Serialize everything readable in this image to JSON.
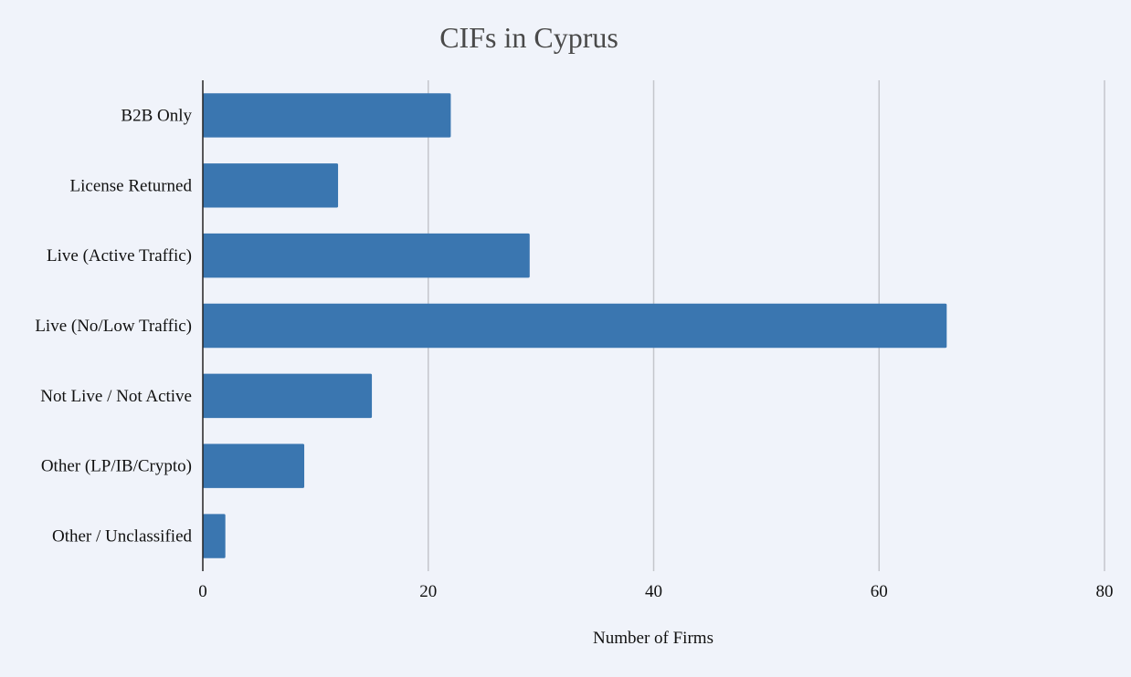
{
  "chart_data": {
    "type": "bar",
    "orientation": "horizontal",
    "title": "CIFs in Cyprus",
    "xlabel": "Number of Firms",
    "ylabel": "",
    "categories": [
      "B2B Only",
      "License Returned",
      "Live (Active Traffic)",
      "Live (No/Low Traffic)",
      "Not Live / Not Active",
      "Other (LP/IB/Crypto)",
      "Other / Unclassified"
    ],
    "values": [
      22,
      12,
      29,
      66,
      15,
      9,
      2
    ],
    "xlim": [
      0,
      80
    ],
    "xticks": [
      "0",
      "20",
      "40",
      "60",
      "80"
    ],
    "grid": true,
    "legend": "none",
    "colors": {
      "bar": "#3a76b0",
      "grid": "#c4c6cc",
      "axis": "#222222",
      "background": "#f0f3fa"
    }
  }
}
